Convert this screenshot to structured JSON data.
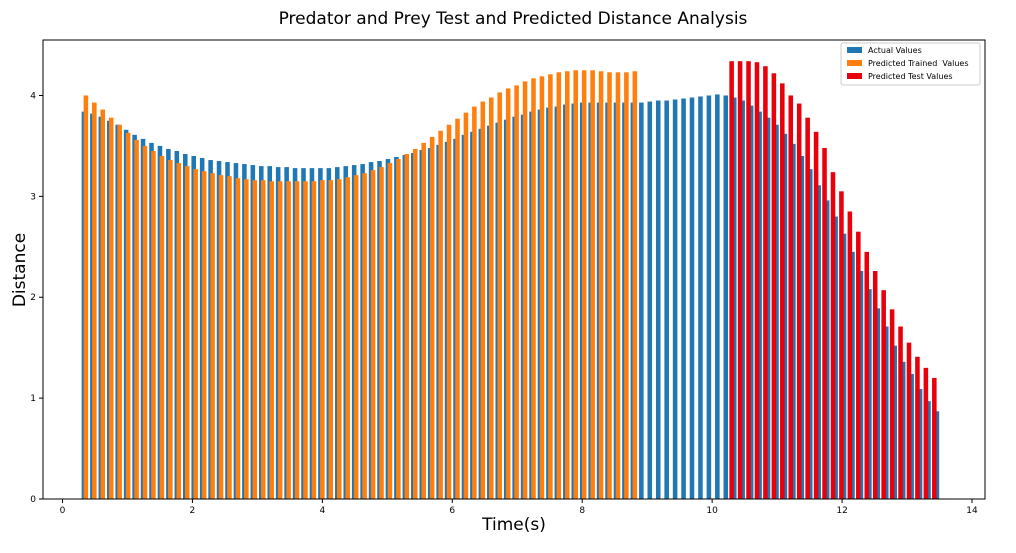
{
  "chart_data": {
    "type": "bar",
    "title": "Predator and Prey Test and Predicted Distance Analysis",
    "xlabel": "Time(s)",
    "ylabel": "Distance",
    "xlim": [
      -0.3,
      14.2
    ],
    "ylim": [
      0,
      4.55
    ],
    "xticks": [
      0,
      2,
      4,
      6,
      8,
      10,
      12,
      14
    ],
    "yticks": [
      0,
      1,
      2,
      3,
      4
    ],
    "bar_width": 0.07,
    "grid": false,
    "legend_position": "upper right",
    "series": [
      {
        "name": "Actual Values",
        "color": "#1f77b4",
        "x": [
          0.33,
          0.46,
          0.59,
          0.72,
          0.85,
          0.98,
          1.11,
          1.24,
          1.37,
          1.5,
          1.63,
          1.76,
          1.89,
          2.02,
          2.15,
          2.28,
          2.41,
          2.54,
          2.67,
          2.8,
          2.93,
          3.06,
          3.19,
          3.32,
          3.45,
          3.58,
          3.71,
          3.84,
          3.97,
          4.1,
          4.23,
          4.36,
          4.49,
          4.62,
          4.75,
          4.88,
          5.01,
          5.14,
          5.27,
          5.4,
          5.53,
          5.66,
          5.79,
          5.92,
          6.05,
          6.18,
          6.31,
          6.44,
          6.57,
          6.7,
          6.83,
          6.96,
          7.09,
          7.22,
          7.35,
          7.48,
          7.61,
          7.74,
          7.87,
          8.0,
          8.13,
          8.26,
          8.39,
          8.52,
          8.65,
          8.78,
          8.91,
          9.04,
          9.17,
          9.3,
          9.43,
          9.56,
          9.69,
          9.82,
          9.95,
          10.08,
          10.21,
          10.34,
          10.47,
          10.6,
          10.73,
          10.86,
          10.99,
          11.12,
          11.25,
          11.38,
          11.51,
          11.64,
          11.77,
          11.9,
          12.03,
          12.16,
          12.29,
          12.42,
          12.55,
          12.68,
          12.81,
          12.94,
          13.07,
          13.2,
          13.33,
          13.46
        ],
        "values": [
          3.84,
          3.82,
          3.79,
          3.75,
          3.71,
          3.66,
          3.61,
          3.57,
          3.53,
          3.5,
          3.47,
          3.45,
          3.42,
          3.4,
          3.38,
          3.36,
          3.35,
          3.34,
          3.33,
          3.32,
          3.31,
          3.3,
          3.3,
          3.29,
          3.29,
          3.28,
          3.28,
          3.28,
          3.28,
          3.28,
          3.29,
          3.3,
          3.31,
          3.32,
          3.34,
          3.35,
          3.37,
          3.39,
          3.41,
          3.43,
          3.46,
          3.48,
          3.51,
          3.54,
          3.57,
          3.61,
          3.64,
          3.67,
          3.7,
          3.73,
          3.76,
          3.79,
          3.81,
          3.84,
          3.86,
          3.88,
          3.89,
          3.91,
          3.92,
          3.93,
          3.93,
          3.93,
          3.93,
          3.93,
          3.93,
          3.93,
          3.93,
          3.94,
          3.95,
          3.95,
          3.96,
          3.97,
          3.98,
          3.99,
          4.0,
          4.01,
          4.0,
          3.98,
          3.95,
          3.9,
          3.84,
          3.78,
          3.71,
          3.62,
          3.52,
          3.4,
          3.27,
          3.11,
          2.96,
          2.8,
          2.63,
          2.45,
          2.26,
          2.08,
          1.89,
          1.71,
          1.52,
          1.36,
          1.24,
          1.09,
          0.97,
          0.87
        ]
      },
      {
        "name": "Predicted Trained  Values",
        "color": "#ff7f0e",
        "x": [
          0.36,
          0.49,
          0.62,
          0.75,
          0.88,
          1.01,
          1.14,
          1.27,
          1.4,
          1.53,
          1.66,
          1.79,
          1.92,
          2.05,
          2.18,
          2.31,
          2.44,
          2.57,
          2.7,
          2.83,
          2.96,
          3.09,
          3.22,
          3.35,
          3.48,
          3.61,
          3.74,
          3.87,
          4.0,
          4.13,
          4.26,
          4.39,
          4.52,
          4.65,
          4.78,
          4.91,
          5.04,
          5.17,
          5.3,
          5.43,
          5.56,
          5.69,
          5.82,
          5.95,
          6.08,
          6.21,
          6.34,
          6.47,
          6.6,
          6.73,
          6.86,
          6.99,
          7.12,
          7.25,
          7.38,
          7.51,
          7.64,
          7.77,
          7.9,
          8.03,
          8.16,
          8.29,
          8.42,
          8.55,
          8.68,
          8.81
        ],
        "values": [
          4.0,
          3.93,
          3.86,
          3.78,
          3.71,
          3.63,
          3.56,
          3.5,
          3.45,
          3.4,
          3.36,
          3.33,
          3.3,
          3.27,
          3.25,
          3.23,
          3.21,
          3.2,
          3.18,
          3.17,
          3.16,
          3.16,
          3.15,
          3.15,
          3.15,
          3.15,
          3.15,
          3.15,
          3.16,
          3.16,
          3.17,
          3.19,
          3.21,
          3.23,
          3.26,
          3.29,
          3.33,
          3.37,
          3.42,
          3.47,
          3.53,
          3.59,
          3.65,
          3.71,
          3.77,
          3.83,
          3.89,
          3.94,
          3.98,
          4.03,
          4.07,
          4.1,
          4.14,
          4.17,
          4.19,
          4.21,
          4.23,
          4.24,
          4.25,
          4.25,
          4.25,
          4.24,
          4.23,
          4.23,
          4.23,
          4.24
        ]
      },
      {
        "name": "Predicted Test Values",
        "color": "#e8000b",
        "x": [
          10.3,
          10.43,
          10.56,
          10.69,
          10.82,
          10.95,
          11.08,
          11.21,
          11.34,
          11.47,
          11.6,
          11.73,
          11.86,
          11.99,
          12.12,
          12.25,
          12.38,
          12.51,
          12.64,
          12.77,
          12.9,
          13.03,
          13.16,
          13.29,
          13.42
        ],
        "values": [
          4.34,
          4.34,
          4.34,
          4.33,
          4.29,
          4.22,
          4.12,
          4.0,
          3.92,
          3.78,
          3.64,
          3.48,
          3.24,
          3.05,
          2.85,
          2.65,
          2.45,
          2.26,
          2.07,
          1.88,
          1.71,
          1.55,
          1.41,
          1.3,
          1.2
        ]
      }
    ]
  }
}
